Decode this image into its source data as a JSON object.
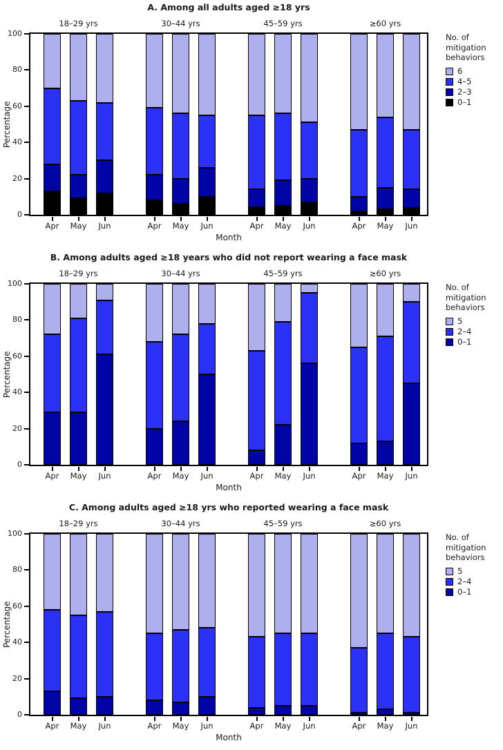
{
  "figure": {
    "x_axis_label": "Month",
    "y_axis_label": "Percentage",
    "legend_title": "No. of mitigation behaviors"
  },
  "chart_data": [
    {
      "panel": "A",
      "type": "bar",
      "stacked": true,
      "units": "percent",
      "title": "A. Among all adults aged ≥18 yrs",
      "xlabel": "Month",
      "ylabel": "Percentage",
      "ylim": [
        0,
        100
      ],
      "yticks": [
        0,
        20,
        40,
        60,
        80,
        100
      ],
      "grid": false,
      "legend_title": "No. of mitigation behaviors",
      "legend_position": "right",
      "legend_labels_top_to_bottom": [
        "6",
        "4–5",
        "2–3",
        "0–1"
      ],
      "months": [
        "Apr",
        "May",
        "Jun"
      ],
      "segment_labels_bottom_to_top": [
        "0–1",
        "2–3",
        "4–5",
        "6"
      ],
      "segment_colors_bottom_to_top": [
        "#000000",
        "#0104A5",
        "#2B31F4",
        "#AEB0EE"
      ],
      "groups": [
        {
          "label": "18–29 yrs",
          "bars": [
            {
              "month": "Apr",
              "segments": [
                13,
                15,
                42,
                30
              ]
            },
            {
              "month": "May",
              "segments": [
                9,
                13,
                41,
                37
              ]
            },
            {
              "month": "Jun",
              "segments": [
                12,
                18,
                32,
                38
              ]
            }
          ]
        },
        {
          "label": "30–44 yrs",
          "bars": [
            {
              "month": "Apr",
              "segments": [
                8,
                14,
                37,
                41
              ]
            },
            {
              "month": "May",
              "segments": [
                6,
                14,
                36,
                44
              ]
            },
            {
              "month": "Jun",
              "segments": [
                10,
                16,
                29,
                45
              ]
            }
          ]
        },
        {
          "label": "45–59 yrs",
          "bars": [
            {
              "month": "Apr",
              "segments": [
                4,
                10,
                41,
                45
              ]
            },
            {
              "month": "May",
              "segments": [
                5,
                14,
                37,
                44
              ]
            },
            {
              "month": "Jun",
              "segments": [
                7,
                13,
                31,
                49
              ]
            }
          ]
        },
        {
          "label": "≥60 yrs",
          "bars": [
            {
              "month": "Apr",
              "segments": [
                2,
                8,
                37,
                53
              ]
            },
            {
              "month": "May",
              "segments": [
                3,
                12,
                39,
                46
              ]
            },
            {
              "month": "Jun",
              "segments": [
                4,
                10,
                33,
                53
              ]
            }
          ]
        }
      ]
    },
    {
      "panel": "B",
      "type": "bar",
      "stacked": true,
      "units": "percent",
      "title": "B. Among adults aged ≥18 years who did not report wearing a face mask",
      "xlabel": "Month",
      "ylabel": "Percentage",
      "ylim": [
        0,
        100
      ],
      "yticks": [
        0,
        20,
        40,
        60,
        80,
        100
      ],
      "grid": false,
      "legend_title": "No. of mitigation behaviors",
      "legend_position": "right",
      "legend_labels_top_to_bottom": [
        "5",
        "2–4",
        "0–1"
      ],
      "months": [
        "Apr",
        "May",
        "Jun"
      ],
      "segment_labels_bottom_to_top": [
        "0–1",
        "2–4",
        "5"
      ],
      "segment_colors_bottom_to_top": [
        "#0104A5",
        "#2B31F4",
        "#AEB0EE"
      ],
      "groups": [
        {
          "label": "18–29 yrs",
          "bars": [
            {
              "month": "Apr",
              "segments": [
                29,
                43,
                28
              ]
            },
            {
              "month": "May",
              "segments": [
                29,
                52,
                19
              ]
            },
            {
              "month": "Jun",
              "segments": [
                61,
                30,
                9
              ]
            }
          ]
        },
        {
          "label": "30–44 yrs",
          "bars": [
            {
              "month": "Apr",
              "segments": [
                20,
                48,
                32
              ]
            },
            {
              "month": "May",
              "segments": [
                24,
                48,
                28
              ]
            },
            {
              "month": "Jun",
              "segments": [
                50,
                28,
                22
              ]
            }
          ]
        },
        {
          "label": "45–59 yrs",
          "bars": [
            {
              "month": "Apr",
              "segments": [
                8,
                55,
                37
              ]
            },
            {
              "month": "May",
              "segments": [
                22,
                57,
                21
              ]
            },
            {
              "month": "Jun",
              "segments": [
                56,
                39,
                5
              ]
            }
          ]
        },
        {
          "label": "≥60 yrs",
          "bars": [
            {
              "month": "Apr",
              "segments": [
                12,
                53,
                35
              ]
            },
            {
              "month": "May",
              "segments": [
                13,
                58,
                29
              ]
            },
            {
              "month": "Jun",
              "segments": [
                45,
                45,
                10
              ]
            }
          ]
        }
      ]
    },
    {
      "panel": "C",
      "type": "bar",
      "stacked": true,
      "units": "percent",
      "title": "C. Among adults aged ≥18 yrs who reported wearing a face mask",
      "xlabel": "Month",
      "ylabel": "Percentage",
      "ylim": [
        0,
        100
      ],
      "yticks": [
        0,
        20,
        40,
        60,
        80,
        100
      ],
      "grid": false,
      "legend_title": "No. of mitigation behaviors",
      "legend_position": "right",
      "legend_labels_top_to_bottom": [
        "5",
        "2–4",
        "0–1"
      ],
      "months": [
        "Apr",
        "May",
        "Jun"
      ],
      "segment_labels_bottom_to_top": [
        "0–1",
        "2–4",
        "5"
      ],
      "segment_colors_bottom_to_top": [
        "#0104A5",
        "#2B31F4",
        "#AEB0EE"
      ],
      "groups": [
        {
          "label": "18–29 yrs",
          "bars": [
            {
              "month": "Apr",
              "segments": [
                13,
                45,
                42
              ]
            },
            {
              "month": "May",
              "segments": [
                9,
                46,
                45
              ]
            },
            {
              "month": "Jun",
              "segments": [
                10,
                47,
                43
              ]
            }
          ]
        },
        {
          "label": "30–44 yrs",
          "bars": [
            {
              "month": "Apr",
              "segments": [
                8,
                37,
                55
              ]
            },
            {
              "month": "May",
              "segments": [
                7,
                40,
                53
              ]
            },
            {
              "month": "Jun",
              "segments": [
                10,
                38,
                52
              ]
            }
          ]
        },
        {
          "label": "45–59 yrs",
          "bars": [
            {
              "month": "Apr",
              "segments": [
                4,
                39,
                57
              ]
            },
            {
              "month": "May",
              "segments": [
                5,
                40,
                55
              ]
            },
            {
              "month": "Jun",
              "segments": [
                5,
                40,
                55
              ]
            }
          ]
        },
        {
          "label": "≥60 yrs",
          "bars": [
            {
              "month": "Apr",
              "segments": [
                1,
                36,
                63
              ]
            },
            {
              "month": "May",
              "segments": [
                3,
                42,
                55
              ]
            },
            {
              "month": "Jun",
              "segments": [
                1,
                42,
                57
              ]
            }
          ]
        }
      ]
    }
  ]
}
